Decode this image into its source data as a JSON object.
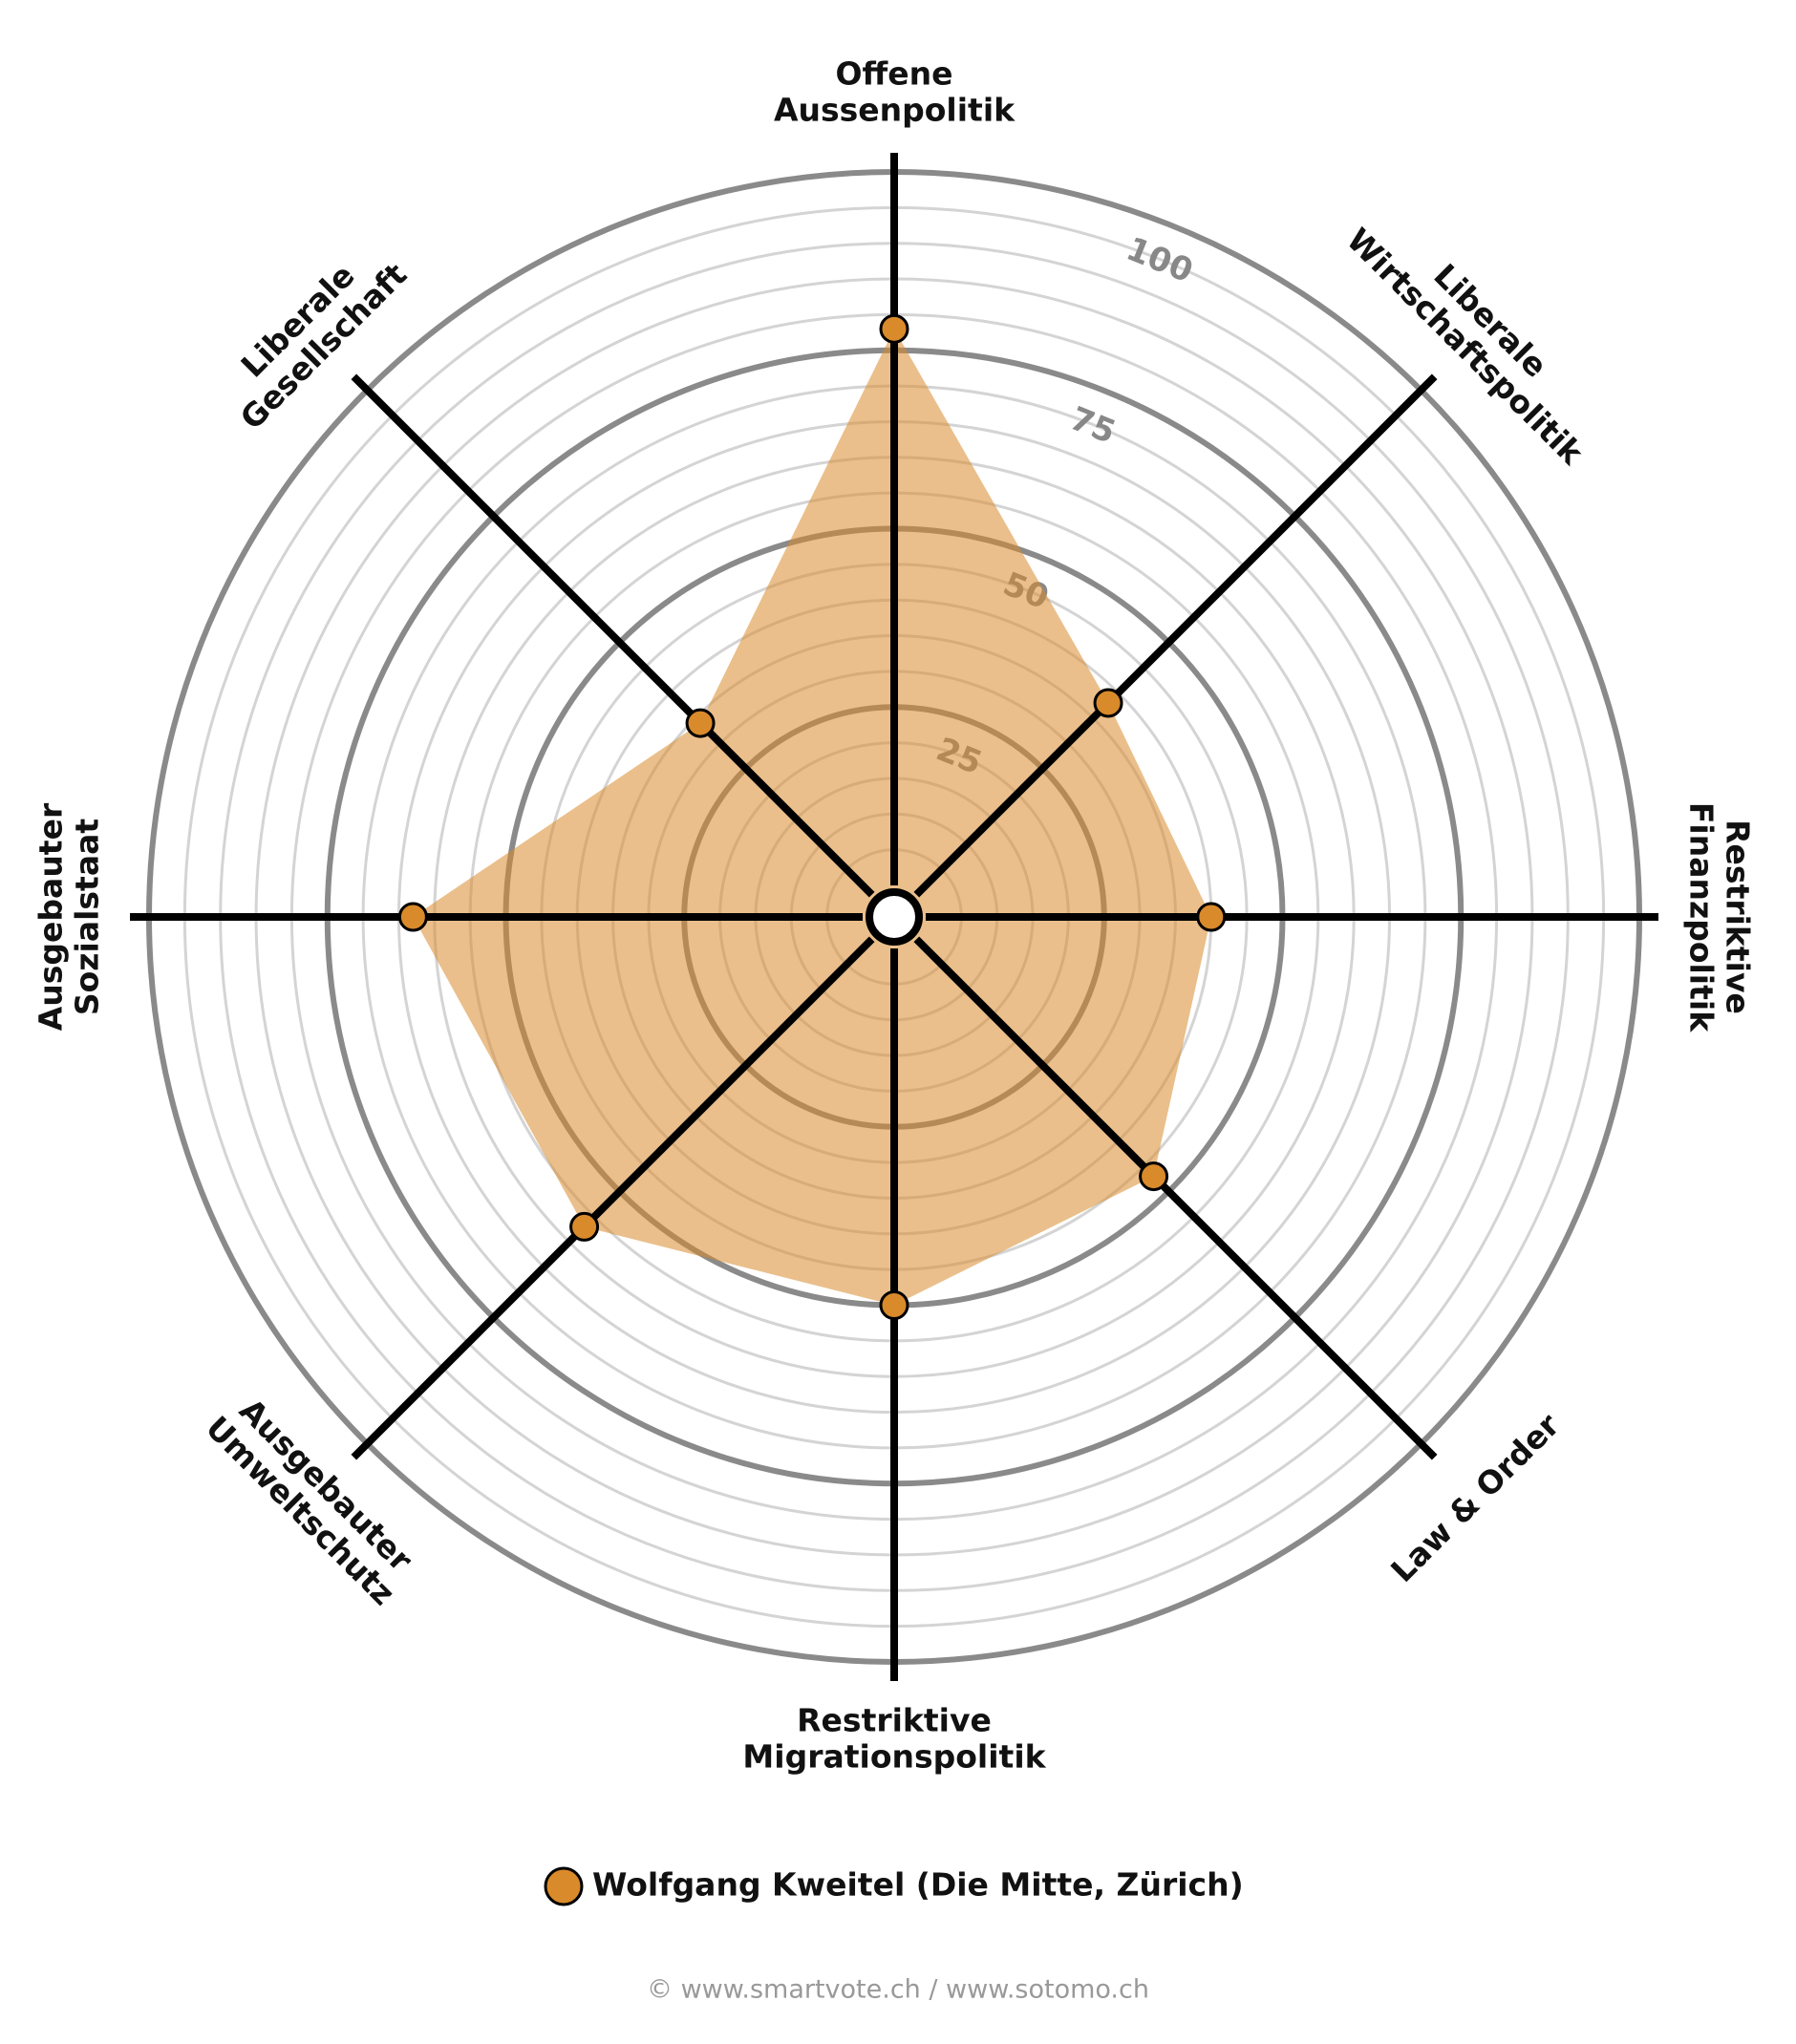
{
  "chart_data": {
    "type": "radar",
    "categories": [
      [
        "Offene",
        "Aussenpolitik"
      ],
      [
        "Liberale",
        "Wirtschaftspolitik"
      ],
      [
        "Restriktive",
        "Finanzpolitik"
      ],
      [
        "Law & Order"
      ],
      [
        "Restriktive",
        "Migrationspolitik"
      ],
      [
        "Ausgebauter",
        "Umweltschutz"
      ],
      [
        "Ausgebauter",
        "Sozialstaat"
      ],
      [
        "Liberale",
        "Gesellschaft"
      ]
    ],
    "series": [
      {
        "name": "Wolfgang Kweitel (Die Mitte, Zürich)",
        "color": "#d98a2b",
        "values": [
          78,
          38,
          40,
          47,
          50,
          57,
          63,
          34
        ]
      }
    ],
    "rlim": [
      0,
      100
    ],
    "rticks": [
      25,
      50,
      75,
      100
    ],
    "grid": true,
    "source": "© www.smartvote.ch / www.sotomo.ch"
  }
}
